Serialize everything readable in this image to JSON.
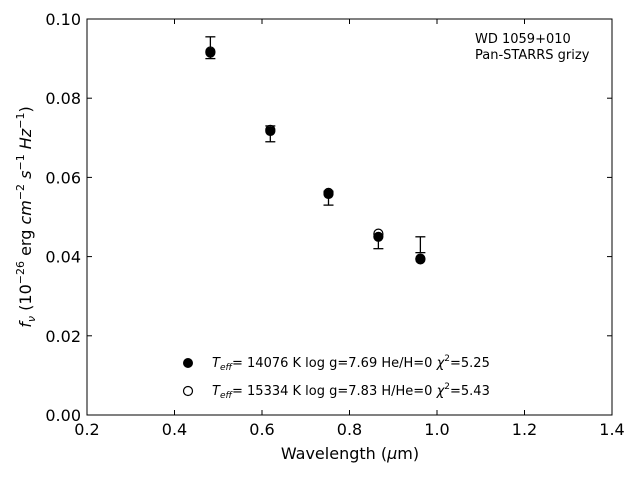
{
  "chart_data": {
    "type": "scatter",
    "xlim": [
      0.2,
      1.4
    ],
    "ylim": [
      0.0,
      0.1
    ],
    "xticks": [
      "0.2",
      "0.4",
      "0.6",
      "0.8",
      "1.0",
      "1.2",
      "1.4"
    ],
    "yticks": [
      "0.00",
      "0.02",
      "0.04",
      "0.06",
      "0.08",
      "0.10"
    ],
    "grid": false,
    "legend_position": "bottom-center",
    "annotation": [
      "WD 1059+010",
      "Pan-STARRS grizy"
    ],
    "observed": {
      "x": [
        0.482,
        0.619,
        0.752,
        0.866,
        0.962
      ],
      "y": [
        0.0925,
        0.071,
        0.055,
        0.044,
        0.043
      ],
      "yerr_lo": [
        0.0025,
        0.002,
        0.002,
        0.002,
        0.002
      ],
      "yerr_hi": [
        0.003,
        0.002,
        0.0015,
        0.0015,
        0.002
      ]
    },
    "series": [
      {
        "marker": "filled",
        "label": {
          "teff_symbol": "T",
          "teff_sub": "eff",
          "text": "= 14076 K  log g=7.69  He/H=0  ",
          "chi_symbol": "χ",
          "chi_sup": "2",
          "chi_value": "=5.25"
        },
        "x": [
          0.482,
          0.619,
          0.752,
          0.866,
          0.962
        ],
        "y": [
          0.0915,
          0.0717,
          0.0558,
          0.045,
          0.0393
        ]
      },
      {
        "marker": "open",
        "label": {
          "teff_symbol": "T",
          "teff_sub": "eff",
          "text": "= 15334 K  log g=7.83  H/He=0  ",
          "chi_symbol": "χ",
          "chi_sup": "2",
          "chi_value": "=5.43"
        },
        "x": [
          0.482,
          0.619,
          0.752,
          0.866,
          0.962
        ],
        "y": [
          0.0918,
          0.072,
          0.0561,
          0.0458,
          0.0395
        ]
      }
    ],
    "xlabel": {
      "text": "Wavelength (",
      "mu": "μ",
      "unit": "m)"
    },
    "ylabel": {
      "f": "f",
      "nu": "ν",
      "p1": " (10",
      "exp1": "−26",
      "p2": " erg ",
      "cm": "cm",
      "exp2": "−2",
      "s": "s",
      "exp3": "−1",
      "hz": "Hz",
      "exp4": "−1",
      "p3": ")"
    }
  }
}
